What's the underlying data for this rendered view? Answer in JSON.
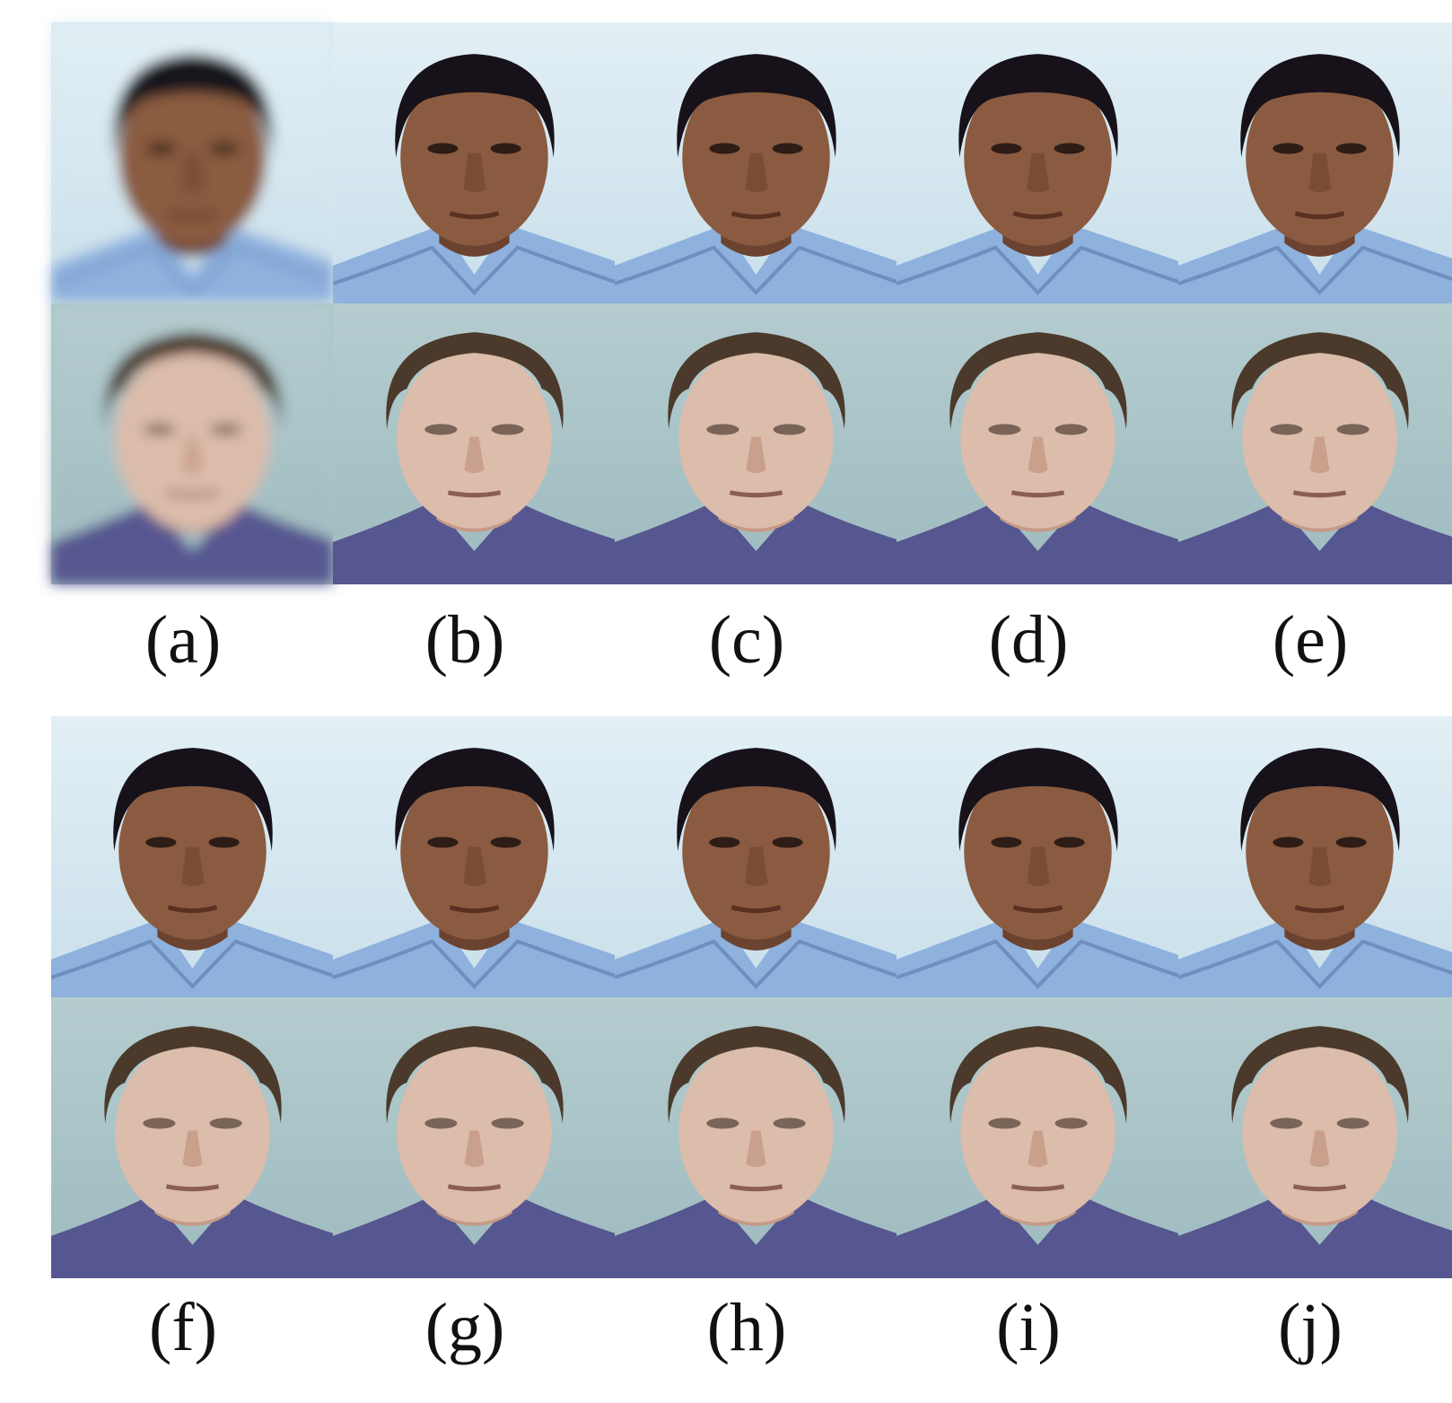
{
  "panels": {
    "labels": [
      "(a)",
      "(b)",
      "(c)",
      "(d)",
      "(e)",
      "(f)",
      "(g)",
      "(h)",
      "(i)",
      "(j)"
    ]
  }
}
